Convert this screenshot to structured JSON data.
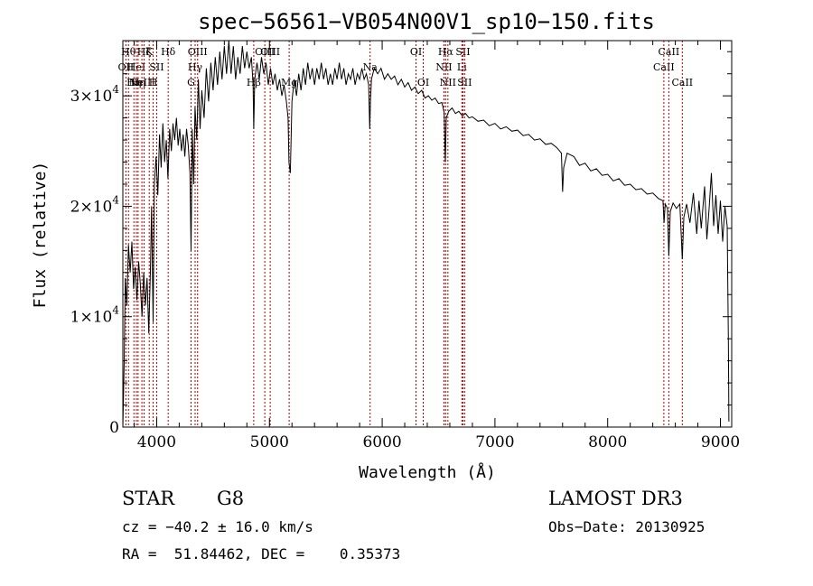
{
  "chart_data": {
    "type": "line",
    "title": "spec−56561−VB054N00V1_sp10−150.fits",
    "xlabel": "Wavelength (Å)",
    "ylabel": "Flux (relative)",
    "xlim": [
      3700,
      9100
    ],
    "ylim": [
      0,
      35000
    ],
    "x_ticks": [
      {
        "value": 4000,
        "label": "4000"
      },
      {
        "value": 5000,
        "label": "5000"
      },
      {
        "value": 6000,
        "label": "6000"
      },
      {
        "value": 7000,
        "label": "7000"
      },
      {
        "value": 8000,
        "label": "8000"
      },
      {
        "value": 9000,
        "label": "9000"
      }
    ],
    "y_ticks": [
      {
        "value": 0,
        "mant": "0",
        "exp": ""
      },
      {
        "value": 10000,
        "mant": "1×10",
        "exp": "4"
      },
      {
        "value": 20000,
        "mant": "2×10",
        "exp": "4"
      },
      {
        "value": 30000,
        "mant": "3×10",
        "exp": "4"
      }
    ],
    "series": [
      {
        "name": "spectrum",
        "color": "#000000",
        "points": [
          [
            3700,
            0
          ],
          [
            3712,
            6000
          ],
          [
            3722,
            13500
          ],
          [
            3735,
            11000
          ],
          [
            3750,
            16500
          ],
          [
            3765,
            14000
          ],
          [
            3780,
            16800
          ],
          [
            3795,
            12500
          ],
          [
            3810,
            14500
          ],
          [
            3825,
            11500
          ],
          [
            3840,
            15000
          ],
          [
            3855,
            13000
          ],
          [
            3870,
            10000
          ],
          [
            3885,
            14000
          ],
          [
            3900,
            11000
          ],
          [
            3915,
            13500
          ],
          [
            3930,
            8500
          ],
          [
            3945,
            14500
          ],
          [
            3955,
            20000
          ],
          [
            3968,
            9500
          ],
          [
            3980,
            22000
          ],
          [
            3995,
            24500
          ],
          [
            4010,
            21000
          ],
          [
            4025,
            26500
          ],
          [
            4040,
            23500
          ],
          [
            4055,
            27500
          ],
          [
            4070,
            24000
          ],
          [
            4085,
            26000
          ],
          [
            4100,
            22500
          ],
          [
            4115,
            27000
          ],
          [
            4130,
            25000
          ],
          [
            4145,
            27500
          ],
          [
            4160,
            26000
          ],
          [
            4175,
            28000
          ],
          [
            4190,
            25500
          ],
          [
            4205,
            27000
          ],
          [
            4220,
            25000
          ],
          [
            4235,
            26500
          ],
          [
            4250,
            24500
          ],
          [
            4265,
            27000
          ],
          [
            4280,
            25500
          ],
          [
            4295,
            23000
          ],
          [
            4305,
            16000
          ],
          [
            4315,
            27000
          ],
          [
            4328,
            22000
          ],
          [
            4340,
            29000
          ],
          [
            4355,
            26000
          ],
          [
            4370,
            31500
          ],
          [
            4385,
            27000
          ],
          [
            4400,
            30500
          ],
          [
            4420,
            28000
          ],
          [
            4440,
            32500
          ],
          [
            4460,
            29500
          ],
          [
            4480,
            33000
          ],
          [
            4500,
            30500
          ],
          [
            4520,
            33500
          ],
          [
            4540,
            31000
          ],
          [
            4560,
            34000
          ],
          [
            4580,
            31500
          ],
          [
            4600,
            34500
          ],
          [
            4620,
            32000
          ],
          [
            4640,
            35000
          ],
          [
            4660,
            32000
          ],
          [
            4680,
            34500
          ],
          [
            4700,
            31500
          ],
          [
            4720,
            33500
          ],
          [
            4740,
            32000
          ],
          [
            4760,
            34500
          ],
          [
            4780,
            32500
          ],
          [
            4800,
            34000
          ],
          [
            4820,
            32500
          ],
          [
            4840,
            33500
          ],
          [
            4855,
            31000
          ],
          [
            4861,
            27000
          ],
          [
            4870,
            31500
          ],
          [
            4890,
            33000
          ],
          [
            4910,
            31500
          ],
          [
            4930,
            33500
          ],
          [
            4950,
            32000
          ],
          [
            4970,
            33000
          ],
          [
            4990,
            31000
          ],
          [
            5010,
            32500
          ],
          [
            5030,
            31000
          ],
          [
            5050,
            32000
          ],
          [
            5070,
            30500
          ],
          [
            5090,
            31500
          ],
          [
            5110,
            30000
          ],
          [
            5130,
            31000
          ],
          [
            5150,
            29500
          ],
          [
            5165,
            28000
          ],
          [
            5173,
            24000
          ],
          [
            5185,
            23000
          ],
          [
            5200,
            29500
          ],
          [
            5220,
            31500
          ],
          [
            5240,
            30000
          ],
          [
            5260,
            32000
          ],
          [
            5280,
            30500
          ],
          [
            5300,
            32500
          ],
          [
            5320,
            31000
          ],
          [
            5340,
            33000
          ],
          [
            5360,
            31500
          ],
          [
            5380,
            32500
          ],
          [
            5400,
            31000
          ],
          [
            5420,
            32500
          ],
          [
            5440,
            31500
          ],
          [
            5460,
            33000
          ],
          [
            5480,
            31500
          ],
          [
            5500,
            32500
          ],
          [
            5520,
            31000
          ],
          [
            5540,
            32000
          ],
          [
            5560,
            31000
          ],
          [
            5580,
            32500
          ],
          [
            5600,
            31500
          ],
          [
            5620,
            33000
          ],
          [
            5640,
            31500
          ],
          [
            5660,
            32500
          ],
          [
            5680,
            31000
          ],
          [
            5700,
            32000
          ],
          [
            5720,
            31500
          ],
          [
            5740,
            32500
          ],
          [
            5760,
            31000
          ],
          [
            5780,
            32000
          ],
          [
            5800,
            31500
          ],
          [
            5820,
            32500
          ],
          [
            5840,
            31500
          ],
          [
            5860,
            32000
          ],
          [
            5880,
            31000
          ],
          [
            5890,
            27000
          ],
          [
            5896,
            29500
          ],
          [
            5905,
            31500
          ],
          [
            5930,
            32500
          ],
          [
            5960,
            32000
          ],
          [
            5990,
            32500
          ],
          [
            6020,
            31500
          ],
          [
            6050,
            32000
          ],
          [
            6080,
            31500
          ],
          [
            6110,
            31800
          ],
          [
            6140,
            31000
          ],
          [
            6170,
            31500
          ],
          [
            6200,
            30800
          ],
          [
            6230,
            31200
          ],
          [
            6260,
            30500
          ],
          [
            6290,
            30800
          ],
          [
            6320,
            30200
          ],
          [
            6350,
            30500
          ],
          [
            6380,
            29800
          ],
          [
            6410,
            30000
          ],
          [
            6440,
            29600
          ],
          [
            6470,
            29800
          ],
          [
            6500,
            29300
          ],
          [
            6530,
            29400
          ],
          [
            6550,
            28500
          ],
          [
            6560,
            24000
          ],
          [
            6568,
            28000
          ],
          [
            6590,
            28600
          ],
          [
            6620,
            28900
          ],
          [
            6650,
            28400
          ],
          [
            6680,
            28600
          ],
          [
            6710,
            28200
          ],
          [
            6740,
            28400
          ],
          [
            6770,
            28000
          ],
          [
            6800,
            28100
          ],
          [
            6850,
            27700
          ],
          [
            6900,
            27800
          ],
          [
            6950,
            27300
          ],
          [
            7000,
            27500
          ],
          [
            7050,
            27000
          ],
          [
            7100,
            27200
          ],
          [
            7150,
            26800
          ],
          [
            7200,
            26900
          ],
          [
            7250,
            26400
          ],
          [
            7300,
            26500
          ],
          [
            7350,
            26000
          ],
          [
            7400,
            26100
          ],
          [
            7450,
            25600
          ],
          [
            7500,
            25700
          ],
          [
            7550,
            25300
          ],
          [
            7590,
            24800
          ],
          [
            7600,
            21300
          ],
          [
            7610,
            23500
          ],
          [
            7640,
            24800
          ],
          [
            7700,
            24500
          ],
          [
            7750,
            23700
          ],
          [
            7800,
            23900
          ],
          [
            7850,
            23200
          ],
          [
            7900,
            23400
          ],
          [
            7950,
            22800
          ],
          [
            8000,
            22900
          ],
          [
            8050,
            22300
          ],
          [
            8100,
            22500
          ],
          [
            8150,
            21900
          ],
          [
            8200,
            22000
          ],
          [
            8250,
            21500
          ],
          [
            8300,
            21600
          ],
          [
            8350,
            21100
          ],
          [
            8400,
            21200
          ],
          [
            8450,
            20700
          ],
          [
            8490,
            20500
          ],
          [
            8500,
            18500
          ],
          [
            8510,
            20200
          ],
          [
            8530,
            19800
          ],
          [
            8542,
            15500
          ],
          [
            8555,
            19500
          ],
          [
            8580,
            20300
          ],
          [
            8610,
            19800
          ],
          [
            8640,
            20200
          ],
          [
            8662,
            15200
          ],
          [
            8675,
            19000
          ],
          [
            8700,
            20200
          ],
          [
            8730,
            18500
          ],
          [
            8760,
            21200
          ],
          [
            8790,
            17500
          ],
          [
            8810,
            20500
          ],
          [
            8830,
            18000
          ],
          [
            8860,
            21800
          ],
          [
            8880,
            17000
          ],
          [
            8900,
            19800
          ],
          [
            8920,
            23000
          ],
          [
            8940,
            18200
          ],
          [
            8960,
            21000
          ],
          [
            8980,
            17500
          ],
          [
            9000,
            20500
          ],
          [
            9020,
            16800
          ],
          [
            9040,
            20000
          ],
          [
            9060,
            18200
          ],
          [
            9070,
            8000
          ],
          [
            9075,
            500
          ]
        ]
      }
    ],
    "lines": [
      {
        "w": 3727,
        "label": "OII",
        "row": 1
      },
      {
        "w": 3750,
        "label": "Hθ",
        "row": 0
      },
      {
        "w": 3798,
        "label": "Hη",
        "row": 2
      },
      {
        "w": 3820,
        "label": "HeI",
        "row": 1
      },
      {
        "w": 3835,
        "label": "Hη",
        "row": 2
      },
      {
        "w": 3869,
        "label": "NeIII",
        "row": 2
      },
      {
        "w": 3889,
        "label": "Hζ",
        "row": 0
      },
      {
        "w": 3934,
        "label": "K",
        "row": 0
      },
      {
        "w": 3969,
        "label": "H",
        "row": 2
      },
      {
        "w": 4000,
        "label": "SII",
        "row": 1
      },
      {
        "w": 4102,
        "label": "Hδ",
        "row": 0
      },
      {
        "w": 4305,
        "label": "G",
        "row": 2
      },
      {
        "w": 4341,
        "label": "Hγ",
        "row": 1
      },
      {
        "w": 4363,
        "label": "OIII",
        "row": 0
      },
      {
        "w": 4861,
        "label": "Hβ",
        "row": 2
      },
      {
        "w": 4959,
        "label": "OIII",
        "row": 0
      },
      {
        "w": 5007,
        "label": "OIII",
        "row": 0
      },
      {
        "w": 5175,
        "label": "Mg",
        "row": 2
      },
      {
        "w": 5893,
        "label": "Na",
        "row": 1
      },
      {
        "w": 6300,
        "label": "OI",
        "row": 0
      },
      {
        "w": 6364,
        "label": "OI",
        "row": 2
      },
      {
        "w": 6548,
        "label": "NII",
        "row": 1
      },
      {
        "w": 6563,
        "label": "Hα",
        "row": 0
      },
      {
        "w": 6583,
        "label": "NII",
        "row": 2
      },
      {
        "w": 6707,
        "label": "Li",
        "row": 1
      },
      {
        "w": 6716,
        "label": "SII",
        "row": 0
      },
      {
        "w": 6731,
        "label": "SII",
        "row": 2
      },
      {
        "w": 8498,
        "label": "CaII",
        "row": 1
      },
      {
        "w": 8542,
        "label": "CaII",
        "row": 0
      },
      {
        "w": 8662,
        "label": "CaII",
        "row": 2
      }
    ]
  },
  "info": {
    "object_class": "STAR",
    "subclass": "G8",
    "survey": "LAMOST DR3",
    "cz": "cz = −40.2 ± 16.0 km/s",
    "obs_date": "Obs−Date: 20130925",
    "coords": "RA =  51.84462, DEC =    0.35373"
  }
}
